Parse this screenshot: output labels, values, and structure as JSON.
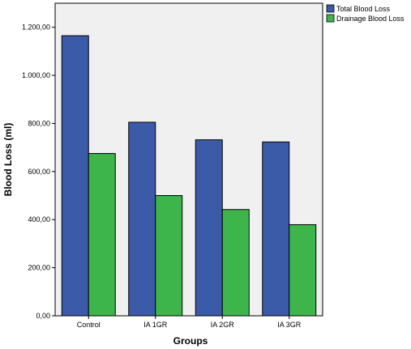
{
  "chart_data": {
    "type": "bar",
    "categories": [
      "Control",
      "IA 1GR",
      "IA 2GR",
      "IA 3GR"
    ],
    "series": [
      {
        "name": "Total Blood Loss",
        "values": [
          1165,
          805,
          732,
          723
        ],
        "color": "#3b5ba8"
      },
      {
        "name": "Drainage Blood Loss",
        "values": [
          675,
          500,
          442,
          379
        ],
        "color": "#3db54a"
      }
    ],
    "xlabel": "Groups",
    "ylabel": "Blood Loss (ml)",
    "ylim": [
      0,
      1300
    ],
    "yticks": [
      0,
      200,
      400,
      600,
      800,
      1000,
      1200
    ],
    "ytick_labels": [
      "0,00",
      "200,00",
      "400,00",
      "600,00",
      "800,00",
      "1.000,00",
      "1.200,00"
    ],
    "legend_position": "top-right",
    "grid": false,
    "plot_background": "#f0f0f0"
  }
}
